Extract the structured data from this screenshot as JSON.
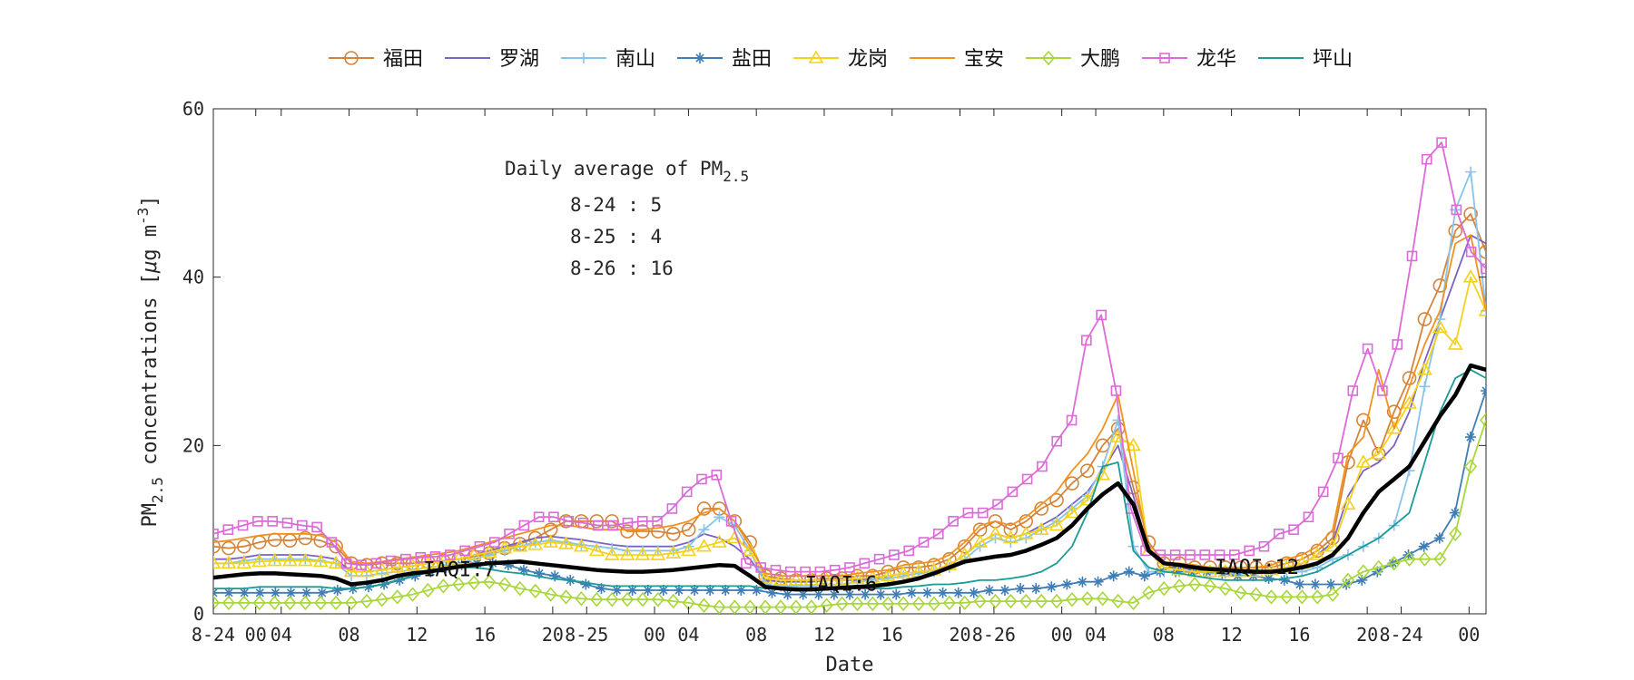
{
  "chart_data": {
    "type": "line",
    "title": "",
    "xlabel": "Date",
    "ylabel": "PM",
    "ylabel_sub": "2.5",
    "ylabel_rest": " concentrations [",
    "ylabel_mu": "μ",
    "ylabel_unit": "g m",
    "ylabel_sup": "-3",
    "ylabel_end": "]",
    "ylim": [
      0,
      60
    ],
    "yticks": [
      0,
      20,
      40,
      60
    ],
    "xlim": [
      0,
      75
    ],
    "xtick_labels": [
      {
        "x": 0,
        "label": "8-24"
      },
      {
        "x": 2.5,
        "label": "00"
      },
      {
        "x": 4,
        "label": "04"
      },
      {
        "x": 8,
        "label": "08"
      },
      {
        "x": 12,
        "label": "12"
      },
      {
        "x": 16,
        "label": "16"
      },
      {
        "x": 20,
        "label": "20"
      },
      {
        "x": 22,
        "label": "8-25"
      },
      {
        "x": 26,
        "label": "00"
      },
      {
        "x": 28,
        "label": "04"
      },
      {
        "x": 32,
        "label": "08"
      },
      {
        "x": 36,
        "label": "12"
      },
      {
        "x": 40,
        "label": "16"
      },
      {
        "x": 44,
        "label": "20"
      },
      {
        "x": 46,
        "label": "8-26"
      },
      {
        "x": 50,
        "label": "00"
      },
      {
        "x": 52,
        "label": "04"
      },
      {
        "x": 56,
        "label": "08"
      },
      {
        "x": 60,
        "label": "12"
      },
      {
        "x": 64,
        "label": "16"
      },
      {
        "x": 68,
        "label": "20"
      },
      {
        "x": 70,
        "label": "8-24"
      },
      {
        "x": 74,
        "label": "00"
      }
    ],
    "legend_position": "top",
    "annotation": {
      "title_prefix": "Daily average of PM",
      "title_sub": "2.5",
      "lines": [
        "8-24 : 5",
        "8-25 : 4",
        "8-26 : 16"
      ]
    },
    "iaqi_labels": [
      {
        "x": 14.5,
        "y": 5.2,
        "label": "IAQI:7"
      },
      {
        "x": 37,
        "y": 3.5,
        "label": "IAQI:6"
      },
      {
        "x": 61.5,
        "y": 5.5,
        "label": "IAQI:12"
      }
    ],
    "series": [
      {
        "name": "福田",
        "color": "#d4843a",
        "marker": "circle",
        "values": [
          8.0,
          7.8,
          8.0,
          8.5,
          8.8,
          8.7,
          9.0,
          8.7,
          8.0,
          6.0,
          5.8,
          6.0,
          6.0,
          6.0,
          6.2,
          6.3,
          6.5,
          6.8,
          7.2,
          7.8,
          8.3,
          9.0,
          10.0,
          11.0,
          11.0,
          11.0,
          11.0,
          9.8,
          9.8,
          9.8,
          9.5,
          10.0,
          12.5,
          12.5,
          11.0,
          8.5,
          4.5,
          4.2,
          4.0,
          4.0,
          4.2,
          4.2,
          4.5,
          4.5,
          5.0,
          5.5,
          5.5,
          5.8,
          6.5,
          8.0,
          10.0,
          11.0,
          10.0,
          11.0,
          12.5,
          13.5,
          15.5,
          17.0,
          20.0,
          22.0,
          15.0,
          8.5,
          6.0,
          6.0,
          5.5,
          5.5,
          5.5,
          5.5,
          5.5,
          5.5,
          6.0,
          6.5,
          7.5,
          9.0,
          18.0,
          23.0,
          19.0,
          24.0,
          28.0,
          35.0,
          39.0,
          45.5,
          47.5,
          43.0
        ]
      },
      {
        "name": "罗湖",
        "color": "#7b62c4",
        "marker": "none",
        "values": [
          6.5,
          6.5,
          6.7,
          7.0,
          7.0,
          7.0,
          7.0,
          6.8,
          6.5,
          5.0,
          5.0,
          5.2,
          5.5,
          5.7,
          6.0,
          6.2,
          6.5,
          7.0,
          7.5,
          8.0,
          8.5,
          9.0,
          9.2,
          9.0,
          8.8,
          8.5,
          8.2,
          8.0,
          8.0,
          8.0,
          8.0,
          8.5,
          9.5,
          9.0,
          8.0,
          6.5,
          4.0,
          3.8,
          3.8,
          3.8,
          4.0,
          4.0,
          4.0,
          4.2,
          4.5,
          4.8,
          5.0,
          5.2,
          5.8,
          7.0,
          8.5,
          9.5,
          9.0,
          9.5,
          10.5,
          11.5,
          13.0,
          14.5,
          17.0,
          20.0,
          14.0,
          7.5,
          5.5,
          5.5,
          5.2,
          5.0,
          5.0,
          5.0,
          5.0,
          5.2,
          5.5,
          6.0,
          7.0,
          8.5,
          14.0,
          17.0,
          18.0,
          20.0,
          24.0,
          30.0,
          35.0,
          40.0,
          45.0,
          44.0
        ]
      },
      {
        "name": "南山",
        "color": "#86c4ec",
        "marker": "plus",
        "values": [
          6.0,
          6.0,
          6.3,
          6.5,
          6.5,
          6.5,
          6.5,
          6.3,
          6.0,
          4.5,
          4.5,
          4.8,
          5.0,
          5.2,
          5.5,
          5.7,
          6.0,
          6.5,
          7.0,
          7.5,
          8.0,
          8.5,
          8.7,
          8.5,
          8.2,
          8.0,
          7.8,
          7.5,
          7.5,
          7.5,
          7.5,
          8.0,
          10.0,
          11.5,
          10.5,
          7.5,
          3.5,
          3.3,
          3.3,
          3.3,
          3.5,
          3.5,
          3.8,
          4.0,
          4.2,
          4.5,
          4.8,
          5.0,
          5.5,
          6.5,
          8.0,
          9.0,
          8.5,
          9.0,
          10.0,
          11.0,
          12.5,
          14.0,
          17.5,
          23.0,
          8.0,
          5.0,
          5.0,
          5.0,
          5.0,
          4.8,
          4.8,
          4.8,
          4.8,
          4.8,
          5.0,
          5.0,
          5.5,
          6.5,
          7.0,
          8.0,
          9.0,
          10.5,
          17.0,
          27.0,
          35.0,
          48.0,
          52.5,
          36.0
        ]
      },
      {
        "name": "盐田",
        "color": "#3f7db5",
        "marker": "star",
        "values": [
          2.5,
          2.5,
          2.5,
          2.5,
          2.5,
          2.5,
          2.5,
          2.5,
          2.8,
          3.0,
          3.2,
          3.5,
          4.0,
          4.5,
          5.0,
          5.5,
          5.8,
          6.0,
          6.0,
          5.8,
          5.2,
          4.8,
          4.5,
          4.0,
          3.5,
          3.0,
          2.8,
          2.8,
          2.8,
          2.8,
          2.8,
          2.8,
          2.8,
          2.8,
          2.8,
          2.8,
          2.5,
          2.3,
          2.3,
          2.3,
          2.3,
          2.3,
          2.3,
          2.3,
          2.3,
          2.5,
          2.5,
          2.5,
          2.5,
          2.5,
          2.8,
          2.8,
          3.0,
          3.0,
          3.2,
          3.5,
          3.8,
          3.8,
          4.5,
          5.0,
          4.5,
          5.0,
          5.0,
          5.0,
          5.0,
          4.8,
          4.5,
          4.5,
          4.2,
          4.0,
          3.5,
          3.5,
          3.5,
          3.5,
          4.0,
          5.0,
          6.0,
          7.0,
          8.0,
          9.0,
          12.0,
          21.0,
          26.5
        ]
      },
      {
        "name": "龙岗",
        "color": "#f5d21a",
        "marker": "triangle",
        "values": [
          6.0,
          6.0,
          6.0,
          6.2,
          6.3,
          6.3,
          6.3,
          6.2,
          6.0,
          5.0,
          5.0,
          5.2,
          5.5,
          5.7,
          6.0,
          6.2,
          6.5,
          7.0,
          7.3,
          7.8,
          8.0,
          8.2,
          8.5,
          8.3,
          8.0,
          7.5,
          7.0,
          7.0,
          7.0,
          7.0,
          7.2,
          7.5,
          8.0,
          8.5,
          9.0,
          7.5,
          4.2,
          4.0,
          4.0,
          4.0,
          4.0,
          4.0,
          4.2,
          4.3,
          4.5,
          4.8,
          5.0,
          5.2,
          5.8,
          7.0,
          8.5,
          9.5,
          9.0,
          9.5,
          10.0,
          10.5,
          12.0,
          13.5,
          16.5,
          21.0,
          20.0,
          7.5,
          5.5,
          5.2,
          5.0,
          5.0,
          5.0,
          5.0,
          5.0,
          5.2,
          5.5,
          6.0,
          7.0,
          8.0,
          13.0,
          18.0,
          19.0,
          22.0,
          25.0,
          29.0,
          34.0,
          32.0,
          40.0,
          36.0
        ]
      },
      {
        "name": "宝安",
        "color": "#f2921e",
        "marker": "none",
        "values": [
          8.5,
          8.7,
          9.0,
          9.3,
          9.5,
          9.5,
          9.5,
          9.3,
          8.5,
          6.2,
          6.0,
          6.2,
          6.5,
          6.7,
          7.0,
          7.2,
          7.5,
          8.0,
          8.5,
          9.0,
          9.5,
          10.0,
          10.5,
          10.5,
          10.3,
          10.0,
          10.0,
          10.0,
          10.0,
          10.2,
          10.5,
          11.0,
          12.0,
          12.5,
          11.0,
          8.0,
          4.8,
          4.5,
          4.5,
          4.5,
          4.5,
          4.5,
          4.8,
          5.0,
          5.2,
          5.8,
          6.0,
          6.2,
          7.0,
          8.5,
          10.5,
          11.0,
          10.5,
          11.5,
          13.0,
          14.5,
          17.0,
          19.0,
          22.0,
          26.0,
          17.0,
          7.5,
          6.0,
          6.0,
          5.8,
          5.5,
          5.5,
          5.5,
          5.5,
          5.8,
          6.5,
          7.0,
          8.0,
          10.0,
          19.0,
          21.0,
          29.0,
          22.0,
          27.0,
          32.0,
          36.0,
          44.0,
          45.0,
          36.0
        ]
      },
      {
        "name": "大鹏",
        "color": "#a9d63c",
        "marker": "diamond",
        "values": [
          1.3,
          1.3,
          1.3,
          1.3,
          1.3,
          1.3,
          1.3,
          1.3,
          1.3,
          1.3,
          1.5,
          1.7,
          2.0,
          2.3,
          2.8,
          3.3,
          3.5,
          3.7,
          3.8,
          3.5,
          3.0,
          2.7,
          2.3,
          2.0,
          1.8,
          1.7,
          1.7,
          1.7,
          1.7,
          1.7,
          1.5,
          1.3,
          1.0,
          0.8,
          0.8,
          0.8,
          0.8,
          0.8,
          0.8,
          0.8,
          1.0,
          1.2,
          1.2,
          1.2,
          1.2,
          1.2,
          1.2,
          1.2,
          1.3,
          1.3,
          1.5,
          1.5,
          1.5,
          1.5,
          1.5,
          1.5,
          1.7,
          1.8,
          1.8,
          1.5,
          1.3,
          2.5,
          3.0,
          3.3,
          3.5,
          3.3,
          3.0,
          2.5,
          2.3,
          2.0,
          2.0,
          2.0,
          2.0,
          2.3,
          4.0,
          5.0,
          5.5,
          6.0,
          6.5,
          6.5,
          6.5,
          9.5,
          17.5,
          23.0
        ]
      },
      {
        "name": "龙华",
        "color": "#dc6ad8",
        "marker": "square",
        "values": [
          9.5,
          10.0,
          10.5,
          11.0,
          11.0,
          10.8,
          10.5,
          10.3,
          8.5,
          6.0,
          5.8,
          6.0,
          6.3,
          6.5,
          6.7,
          6.8,
          7.0,
          7.5,
          8.0,
          8.5,
          9.5,
          10.5,
          11.5,
          11.5,
          11.0,
          10.8,
          10.5,
          10.5,
          10.8,
          11.0,
          11.0,
          12.5,
          14.5,
          16.0,
          16.5,
          11.0,
          6.0,
          5.5,
          5.2,
          5.0,
          5.0,
          5.0,
          5.2,
          5.5,
          6.0,
          6.5,
          7.0,
          7.5,
          8.5,
          9.5,
          11.0,
          12.0,
          12.0,
          13.0,
          14.5,
          16.0,
          17.5,
          20.5,
          23.0,
          32.5,
          35.5,
          26.5,
          12.5,
          7.5,
          7.0,
          7.0,
          7.0,
          7.0,
          7.0,
          7.0,
          7.5,
          8.0,
          9.5,
          10.0,
          11.5,
          14.5,
          18.5,
          26.5,
          31.5,
          26.5,
          32.0,
          42.5,
          54.0,
          56.0,
          48.0,
          43.0,
          41.0
        ]
      },
      {
        "name": "坪山",
        "color": "#1a9b95",
        "marker": "none",
        "values": [
          3.0,
          3.0,
          3.0,
          3.2,
          3.2,
          3.2,
          3.2,
          3.2,
          3.0,
          3.0,
          3.2,
          3.5,
          4.0,
          4.5,
          5.0,
          5.3,
          5.5,
          5.5,
          5.3,
          5.0,
          4.8,
          4.5,
          4.2,
          4.0,
          3.8,
          3.5,
          3.3,
          3.3,
          3.3,
          3.3,
          3.3,
          3.3,
          3.3,
          3.3,
          3.3,
          3.3,
          3.0,
          3.0,
          3.0,
          3.0,
          3.0,
          3.0,
          3.0,
          3.0,
          3.0,
          3.2,
          3.3,
          3.5,
          3.5,
          3.7,
          4.0,
          4.0,
          4.2,
          4.5,
          5.0,
          6.0,
          8.0,
          12.0,
          17.5,
          18.0,
          7.5,
          5.5,
          5.0,
          4.8,
          4.5,
          4.2,
          4.0,
          4.0,
          4.0,
          4.0,
          4.2,
          4.5,
          5.0,
          6.0,
          7.0,
          8.0,
          9.0,
          10.5,
          12.0,
          18.0,
          24.0,
          28.0,
          29.0,
          28.0
        ]
      },
      {
        "name": "",
        "color": "#000000",
        "marker": "none",
        "bold": true,
        "values": [
          4.3,
          4.5,
          4.7,
          4.8,
          4.8,
          4.7,
          4.6,
          4.5,
          4.2,
          3.5,
          3.7,
          4.0,
          4.5,
          4.8,
          5.0,
          5.3,
          5.6,
          5.8,
          6.0,
          6.1,
          6.2,
          6.0,
          5.8,
          5.6,
          5.4,
          5.2,
          5.1,
          5.0,
          5.0,
          5.1,
          5.2,
          5.4,
          5.6,
          5.8,
          5.7,
          4.5,
          3.2,
          3.0,
          2.9,
          2.9,
          3.0,
          3.1,
          3.2,
          3.3,
          3.5,
          3.8,
          4.2,
          4.8,
          5.5,
          6.2,
          6.5,
          6.8,
          7.0,
          7.5,
          8.2,
          9.0,
          10.5,
          12.5,
          14.2,
          15.5,
          13.0,
          7.5,
          6.0,
          5.8,
          5.5,
          5.3,
          5.2,
          5.1,
          5.0,
          5.0,
          5.2,
          5.5,
          6.0,
          7.0,
          9.0,
          12.0,
          14.5,
          16.0,
          17.5,
          20.5,
          23.5,
          26.0,
          29.5,
          29.0
        ]
      }
    ]
  }
}
